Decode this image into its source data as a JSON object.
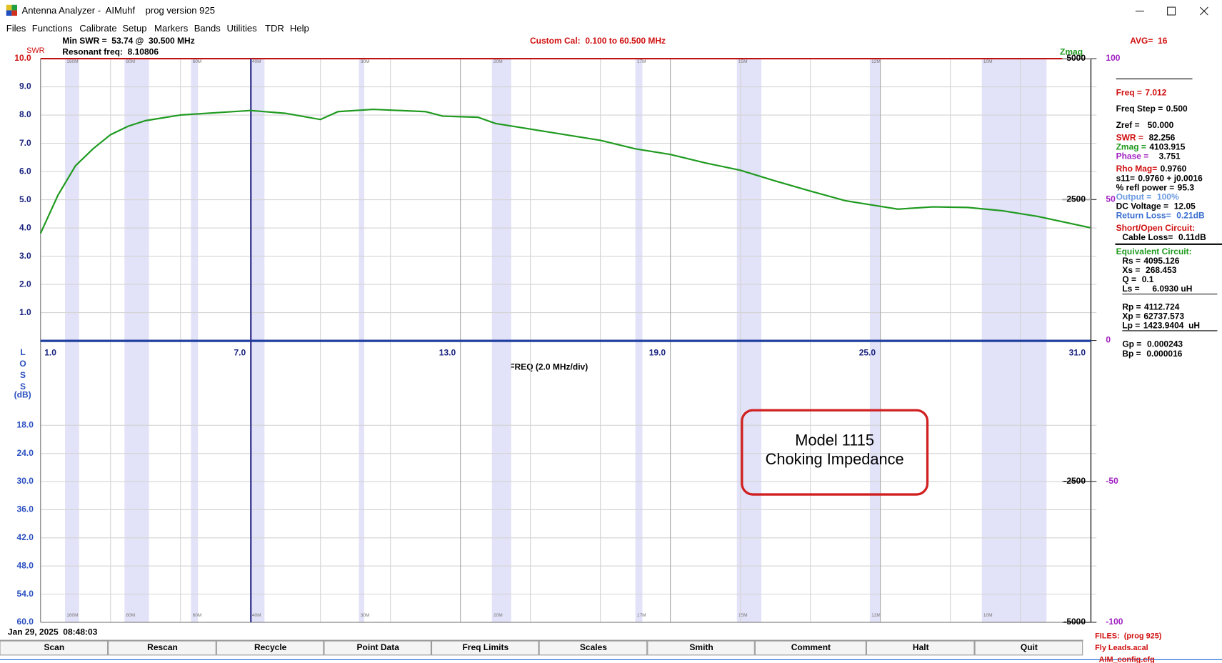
{
  "window": {
    "title": "Antenna Analyzer -  AIMuhf    prog version 925"
  },
  "menu": [
    "Files",
    "Functions",
    "Calibrate",
    "Setup",
    "Markers",
    "Bands",
    "Utilities",
    "TDR",
    "Help"
  ],
  "header": {
    "min_swr": "Min SWR =  53.74 @  30.500 MHz",
    "resonant": "Resonant freq:  8.10806",
    "custom_cal": "Custom Cal:  0.100 to 60.500 MHz",
    "avg": "AVG=  16"
  },
  "chart_data": {
    "type": "line",
    "xlabel": "FREQ (2.0 MHz/div)",
    "ylabel": "SWR",
    "y2label": "Zmag",
    "x": [
      1,
      1.5,
      2,
      2.5,
      3,
      3.5,
      4,
      5,
      6,
      7,
      8,
      9,
      9.5,
      10.5,
      12,
      12.5,
      13.5,
      14,
      15,
      16,
      17,
      18,
      19,
      20,
      21,
      22,
      23,
      24,
      25,
      25.5,
      26.5,
      27.5,
      28.5,
      29.5,
      31
    ],
    "series": [
      {
        "name": "Zmag",
        "color": "#1f9a1f",
        "axis": "y2",
        "values": [
          1900,
          2580,
          3100,
          3400,
          3650,
          3800,
          3900,
          4000,
          4040,
          4080,
          4030,
          3920,
          4060,
          4100,
          4060,
          3980,
          3960,
          3850,
          3750,
          3650,
          3550,
          3400,
          3300,
          3150,
          3020,
          2830,
          2650,
          2480,
          2380,
          2330,
          2370,
          2360,
          2300,
          2200,
          2000
        ]
      }
    ],
    "xlim": [
      1,
      31
    ],
    "xticks": [
      {
        "value": 1,
        "label": "1.0"
      },
      {
        "value": 7,
        "label": "7.0"
      },
      {
        "value": 13,
        "label": "13.0"
      },
      {
        "value": 19,
        "label": "19.0"
      },
      {
        "value": 25,
        "label": "25.0"
      },
      {
        "value": 31,
        "label": "31.0"
      }
    ],
    "xgrid": [
      3,
      5,
      9,
      11,
      15,
      17,
      21,
      23,
      27,
      29
    ],
    "ylim": [
      0,
      10
    ],
    "yticks": [
      {
        "value": 1,
        "label": "1.0"
      },
      {
        "value": 2,
        "label": "2.0"
      },
      {
        "value": 3,
        "label": "3.0"
      },
      {
        "value": 4,
        "label": "4.0"
      },
      {
        "value": 5,
        "label": "5.0"
      },
      {
        "value": 6,
        "label": "6.0"
      },
      {
        "value": 7,
        "label": "7.0"
      },
      {
        "value": 8,
        "label": "8.0"
      },
      {
        "value": 9,
        "label": "9.0"
      },
      {
        "value": 10,
        "label": "10.0"
      }
    ],
    "loss_axis": {
      "label": "LOSS",
      "unit": "(dB)",
      "lim": [
        0,
        60
      ],
      "ticks": [
        {
          "value": 18,
          "label": "18.0"
        },
        {
          "value": 24,
          "label": "24.0"
        },
        {
          "value": 30,
          "label": "30.0"
        },
        {
          "value": 36,
          "label": "36.0"
        },
        {
          "value": 42,
          "label": "42.0"
        },
        {
          "value": 48,
          "label": "48.0"
        },
        {
          "value": 54,
          "label": "54.0"
        },
        {
          "value": 60,
          "label": "60.0"
        }
      ]
    },
    "y2lim": [
      -5000,
      5000
    ],
    "y2ticks": [
      5000,
      2500,
      -2500,
      -5000
    ],
    "phase_axis": {
      "lim": [
        -100,
        100
      ],
      "ticks": [
        100,
        50,
        0,
        -50,
        -100
      ],
      "color": "#a020c0"
    },
    "cursor": 7.012,
    "bands": [
      {
        "name": "160M",
        "range": [
          1.7,
          2.1
        ]
      },
      {
        "name": "80M",
        "range": [
          3.4,
          4.1
        ]
      },
      {
        "name": "60M",
        "range": [
          5.3,
          5.5
        ]
      },
      {
        "name": "40M",
        "range": [
          7.0,
          7.4
        ]
      },
      {
        "name": "30M",
        "range": [
          10.1,
          10.25
        ]
      },
      {
        "name": "20M",
        "range": [
          13.9,
          14.45
        ]
      },
      {
        "name": "17M",
        "range": [
          18.0,
          18.2
        ]
      },
      {
        "name": "15M",
        "range": [
          20.9,
          21.6
        ]
      },
      {
        "name": "12M",
        "range": [
          24.7,
          25.0
        ]
      },
      {
        "name": "10M",
        "range": [
          27.9,
          29.75
        ]
      }
    ],
    "grid": true
  },
  "readouts": [
    {
      "label": "Freq =",
      "value": "7.012",
      "color": "#d01010",
      "value_color": "#d01010"
    },
    {
      "label": "Freq Step =",
      "value": "0.500",
      "color": "#000000"
    },
    {
      "label": "Zref =",
      "value": "  50.000",
      "color": "#000000"
    },
    {
      "label": "SWR =",
      "value": " 82.256",
      "color": "#d01010"
    },
    {
      "label": "Zmag =",
      "value": "4103.915",
      "color": "#1f9a1f"
    },
    {
      "label": "Phase =",
      "value": "   3.751",
      "color": "#a020c0"
    },
    {
      "label": "Rho Mag=",
      "value": "0.9760",
      "color": "#d01010"
    },
    {
      "label": "s11=",
      "value": "0.9760 + j0.0016",
      "color": "#000000"
    },
    {
      "label": "% refl power =",
      "value": "95.3",
      "color": "#000000"
    },
    {
      "label": "Output =",
      "value": " 100%",
      "color": "#6a9ae0",
      "value_color": "#6a9ae0"
    },
    {
      "label": "DC Voltage =",
      "value": " 12.05",
      "color": "#000000"
    },
    {
      "label": "Return Loss=",
      "value": " 0.21dB",
      "color": "#3a6fd0",
      "value_color": "#3a6fd0"
    },
    {
      "label": "Short/Open Circuit:",
      "color": "#d01010"
    },
    {
      "label": "Cable Loss=",
      "value": " 0.11dB",
      "color": "#000000"
    },
    {
      "label": "Equivalent Circuit:",
      "color": "#1f9a1f"
    },
    {
      "label": "Rs =",
      "value": "4095.126",
      "color": "#000000"
    },
    {
      "label": "Xs =",
      "value": " 268.453",
      "color": "#000000"
    },
    {
      "label": "Q =",
      "value": " 0.1",
      "color": "#000000"
    },
    {
      "label": "Ls =",
      "value": "    6.0930 uH",
      "color": "#000000"
    },
    {
      "label": "Rp =",
      "value": "4112.724",
      "color": "#000000"
    },
    {
      "label": "Xp =",
      "value": "62737.573",
      "color": "#000000"
    },
    {
      "label": "Lp =",
      "value": "1423.9404  uH",
      "color": "#000000"
    },
    {
      "label": "Gp =",
      "value": " 0.000243",
      "color": "#000000"
    },
    {
      "label": "Bp =",
      "value": " 0.000016",
      "color": "#000000"
    }
  ],
  "annotation": {
    "line1": "Model 1115",
    "line2": "Choking Impedance"
  },
  "timestamp": "Jan 29, 2025  08:48:03",
  "buttons": [
    "Scan",
    "Rescan",
    "Recycle",
    "Point Data",
    "Freq Limits",
    "Scales",
    "Smith",
    "Comment",
    "Halt",
    "Quit"
  ],
  "files": [
    "FILES:  (prog 925)",
    "Fly Leads.acal",
    "AIM_config.cfg"
  ]
}
